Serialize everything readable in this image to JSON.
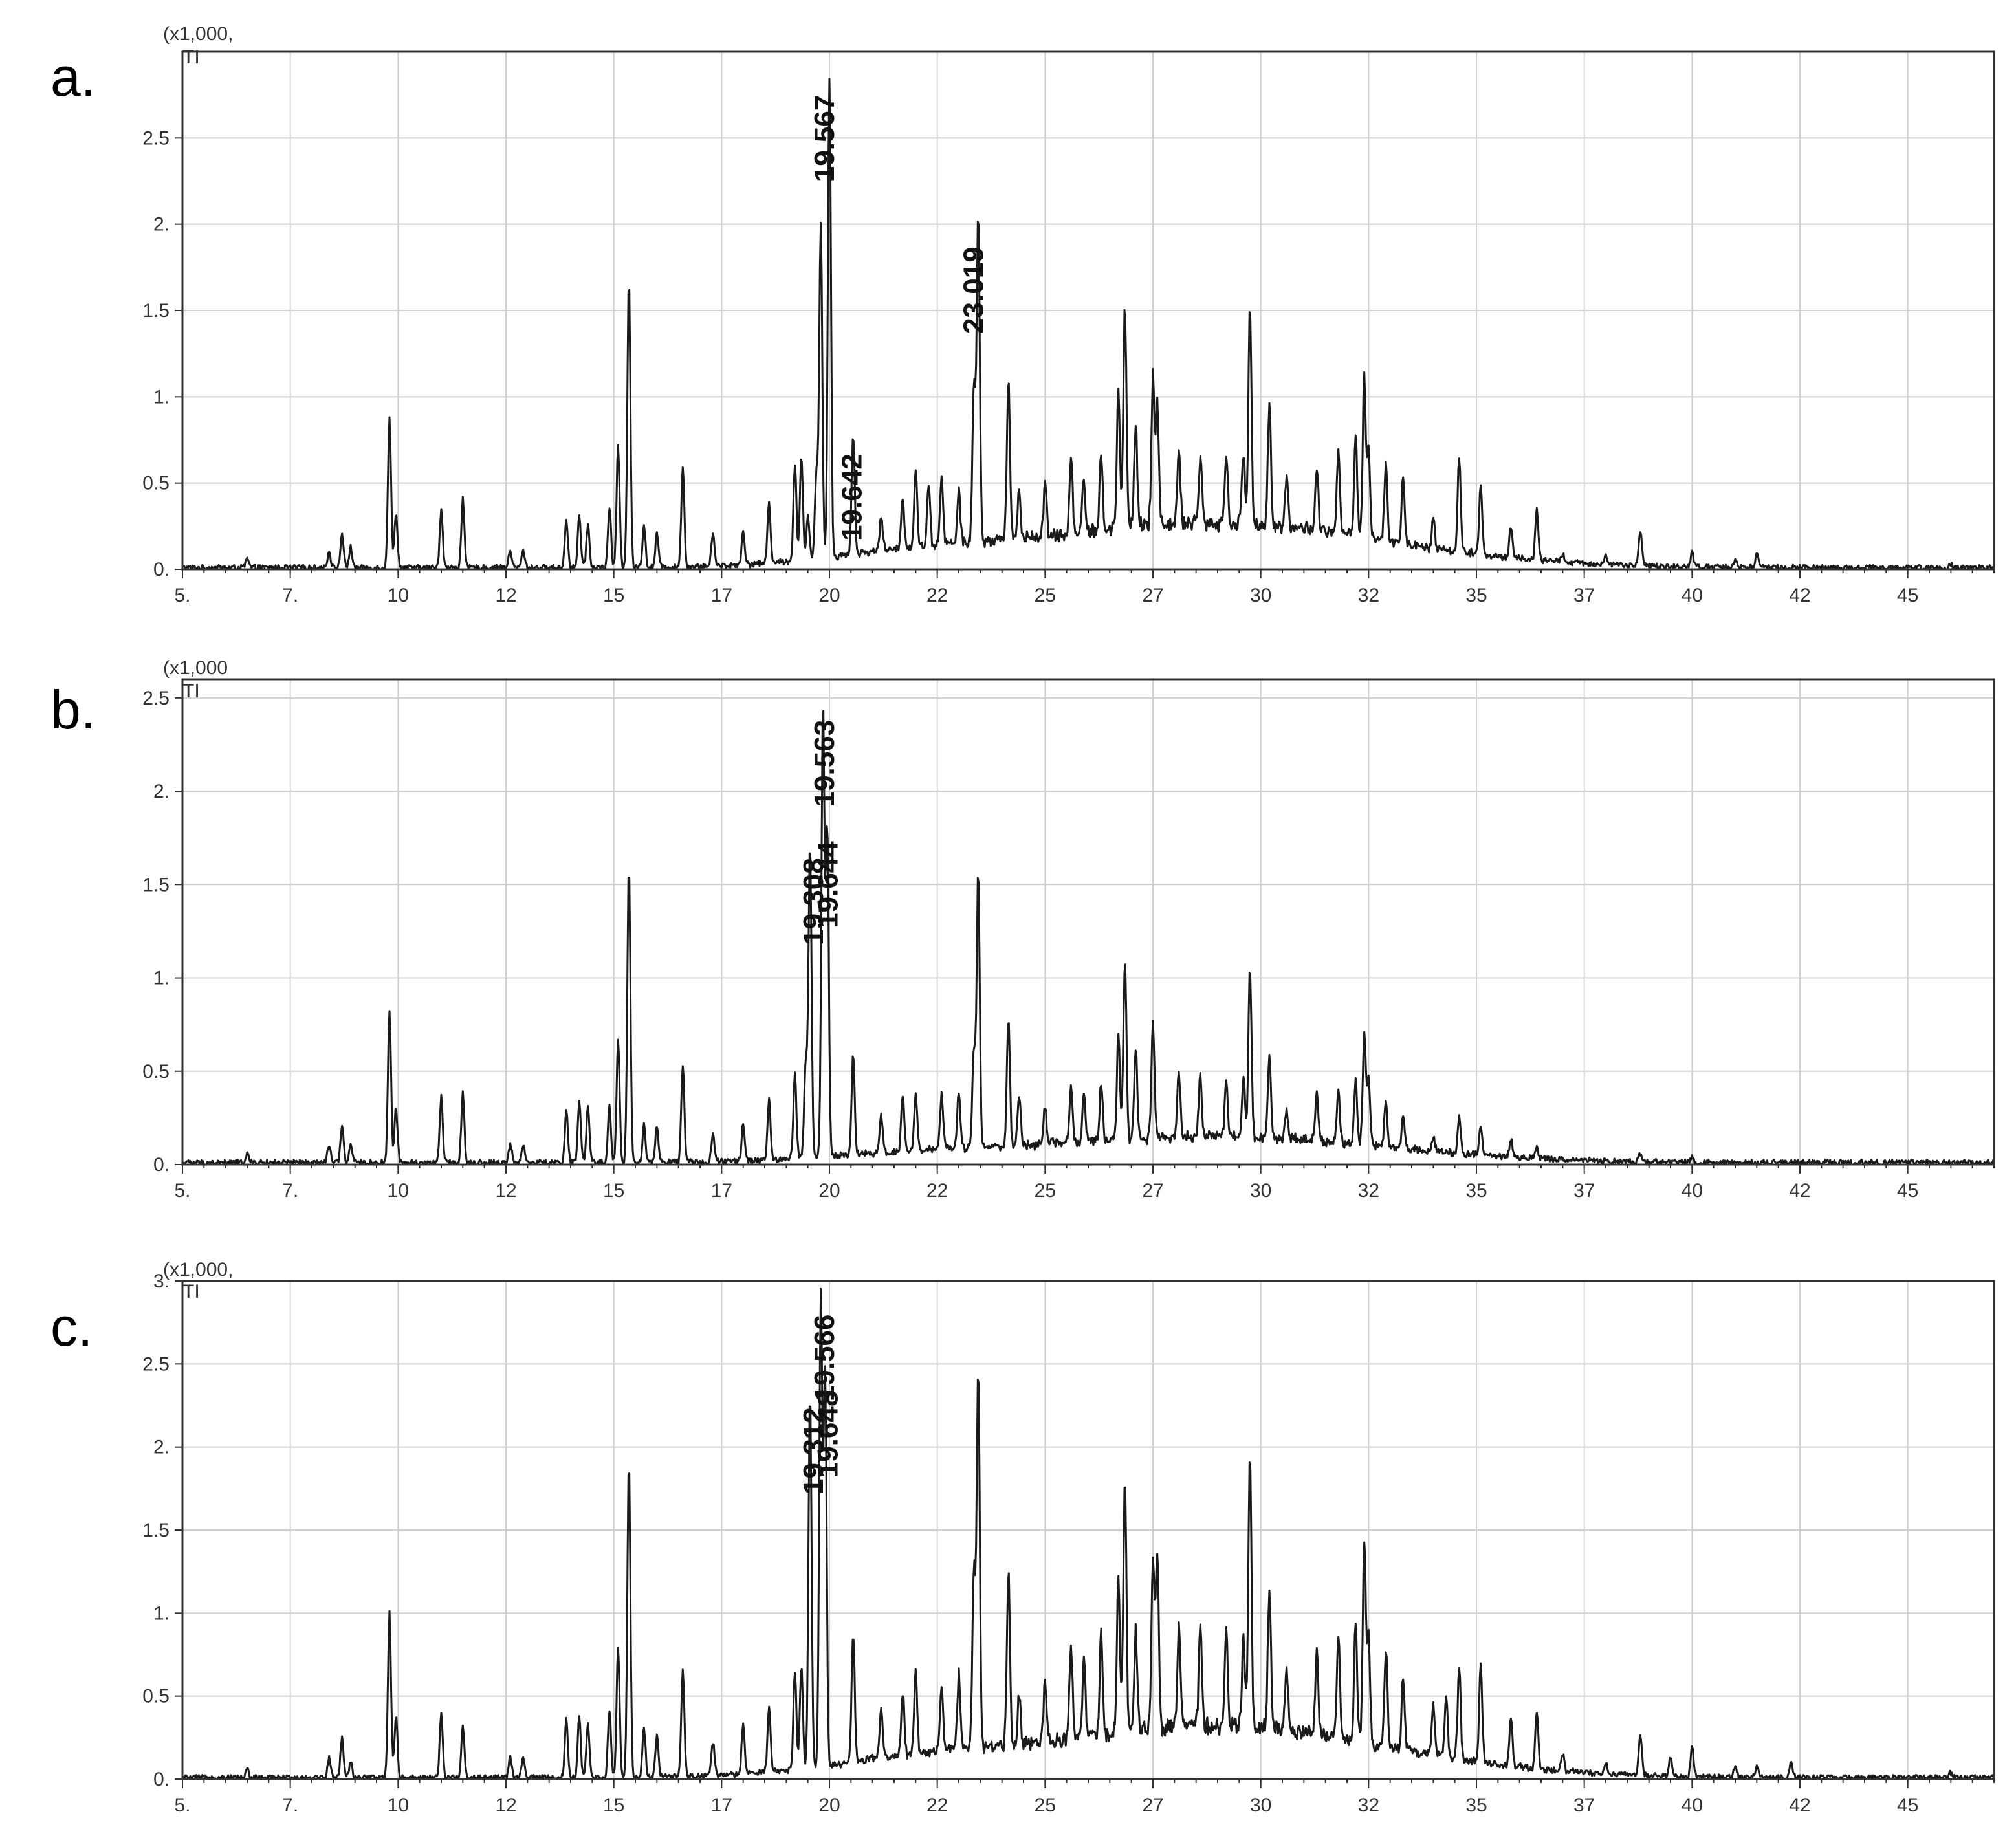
{
  "chart_data": [
    {
      "type": "line",
      "panel_label": "a.",
      "scale_label": "(x1,000,",
      "signal_label": "TI",
      "x_tick_labels": [
        "5.",
        "7.",
        "10",
        "12",
        "15",
        "17",
        "20",
        "22",
        "25",
        "27",
        "30",
        "32",
        "35",
        "37",
        "40",
        "42",
        "45"
      ],
      "y_tick_labels": [
        "0.",
        "0.5",
        "1.",
        "1.5",
        "2.",
        "2.5"
      ],
      "xlim": [
        5.0,
        47.0
      ],
      "ylim": [
        0,
        3.0
      ],
      "grid": true,
      "annotations": [
        {
          "text": "19.567",
          "x": 19.567,
          "y": 2.78
        },
        {
          "text": "23.019",
          "x": 23.019,
          "y": 1.9
        },
        {
          "text": "19.642",
          "x": 20.2,
          "y": 0.7
        }
      ],
      "peaks": [
        [
          6.5,
          0.05
        ],
        [
          8.4,
          0.1
        ],
        [
          8.7,
          0.2
        ],
        [
          8.9,
          0.12
        ],
        [
          9.8,
          0.87
        ],
        [
          9.95,
          0.32
        ],
        [
          11.0,
          0.34
        ],
        [
          11.5,
          0.4
        ],
        [
          12.6,
          0.1
        ],
        [
          12.9,
          0.1
        ],
        [
          13.9,
          0.28
        ],
        [
          14.2,
          0.3
        ],
        [
          14.4,
          0.25
        ],
        [
          14.9,
          0.35
        ],
        [
          15.1,
          0.7
        ],
        [
          15.35,
          1.67
        ],
        [
          15.7,
          0.25
        ],
        [
          16.0,
          0.2
        ],
        [
          16.6,
          0.58
        ],
        [
          17.3,
          0.2
        ],
        [
          18.0,
          0.2
        ],
        [
          18.6,
          0.36
        ],
        [
          19.2,
          0.55
        ],
        [
          19.35,
          0.6
        ],
        [
          19.5,
          0.25
        ],
        [
          19.7,
          0.5
        ],
        [
          19.8,
          1.92
        ],
        [
          20.0,
          2.78
        ],
        [
          20.55,
          0.7
        ],
        [
          21.2,
          0.2
        ],
        [
          21.7,
          0.3
        ],
        [
          22.0,
          0.45
        ],
        [
          22.3,
          0.35
        ],
        [
          22.6,
          0.4
        ],
        [
          23.0,
          0.3
        ],
        [
          23.35,
          0.9
        ],
        [
          23.45,
          1.9
        ],
        [
          24.15,
          0.95
        ],
        [
          24.4,
          0.28
        ],
        [
          25.0,
          0.3
        ],
        [
          25.6,
          0.45
        ],
        [
          25.9,
          0.3
        ],
        [
          26.3,
          0.45
        ],
        [
          26.7,
          0.8
        ],
        [
          26.85,
          1.3
        ],
        [
          27.1,
          0.6
        ],
        [
          27.5,
          0.85
        ],
        [
          27.6,
          0.7
        ],
        [
          28.1,
          0.45
        ],
        [
          28.6,
          0.4
        ],
        [
          29.2,
          0.42
        ],
        [
          29.6,
          0.4
        ],
        [
          29.75,
          1.28
        ],
        [
          30.2,
          0.7
        ],
        [
          30.6,
          0.3
        ],
        [
          31.3,
          0.38
        ],
        [
          31.8,
          0.5
        ],
        [
          32.2,
          0.58
        ],
        [
          32.4,
          0.93
        ],
        [
          32.5,
          0.5
        ],
        [
          32.9,
          0.45
        ],
        [
          33.3,
          0.4
        ],
        [
          34.0,
          0.18
        ],
        [
          34.6,
          0.55
        ],
        [
          35.1,
          0.4
        ],
        [
          35.8,
          0.18
        ],
        [
          36.4,
          0.3
        ],
        [
          37.0,
          0.05
        ],
        [
          38.0,
          0.05
        ],
        [
          38.8,
          0.2
        ],
        [
          40.0,
          0.08
        ],
        [
          41.0,
          0.05
        ],
        [
          41.5,
          0.08
        ],
        [
          46.0,
          0.02
        ]
      ]
    },
    {
      "type": "line",
      "panel_label": "b.",
      "scale_label": "(x1,000",
      "signal_label": "TI",
      "x_tick_labels": [
        "5.",
        "7.",
        "10",
        "12",
        "15",
        "17",
        "20",
        "22",
        "25",
        "27",
        "30",
        "32",
        "35",
        "37",
        "40",
        "42",
        "45"
      ],
      "y_tick_labels": [
        "0.",
        "0.5",
        "1.",
        "1.5",
        "2.",
        "2.5"
      ],
      "xlim": [
        5.0,
        47.0
      ],
      "ylim": [
        0,
        2.6
      ],
      "grid": true,
      "annotations": [
        {
          "text": "19.308",
          "x": 19.308,
          "y": 1.67
        },
        {
          "text": "19.563",
          "x": 19.563,
          "y": 2.41
        },
        {
          "text": "19.644",
          "x": 19.644,
          "y": 1.76
        }
      ],
      "peaks": [
        [
          6.5,
          0.05
        ],
        [
          8.4,
          0.1
        ],
        [
          8.7,
          0.2
        ],
        [
          8.9,
          0.1
        ],
        [
          9.8,
          0.82
        ],
        [
          9.95,
          0.3
        ],
        [
          11.0,
          0.35
        ],
        [
          11.5,
          0.38
        ],
        [
          12.6,
          0.1
        ],
        [
          12.9,
          0.1
        ],
        [
          13.9,
          0.28
        ],
        [
          14.2,
          0.33
        ],
        [
          14.4,
          0.3
        ],
        [
          14.9,
          0.3
        ],
        [
          15.1,
          0.66
        ],
        [
          15.35,
          1.6
        ],
        [
          15.7,
          0.2
        ],
        [
          16.0,
          0.2
        ],
        [
          16.6,
          0.52
        ],
        [
          17.3,
          0.15
        ],
        [
          18.0,
          0.2
        ],
        [
          18.6,
          0.32
        ],
        [
          19.2,
          0.45
        ],
        [
          19.45,
          0.52
        ],
        [
          19.55,
          1.67
        ],
        [
          19.85,
          2.41
        ],
        [
          19.95,
          1.76
        ],
        [
          20.55,
          0.54
        ],
        [
          21.2,
          0.2
        ],
        [
          21.7,
          0.3
        ],
        [
          22.0,
          0.3
        ],
        [
          22.6,
          0.3
        ],
        [
          23.0,
          0.3
        ],
        [
          23.35,
          0.52
        ],
        [
          23.45,
          1.47
        ],
        [
          24.15,
          0.7
        ],
        [
          24.4,
          0.25
        ],
        [
          25.0,
          0.2
        ],
        [
          25.6,
          0.3
        ],
        [
          25.9,
          0.25
        ],
        [
          26.3,
          0.3
        ],
        [
          26.7,
          0.55
        ],
        [
          26.85,
          0.95
        ],
        [
          27.1,
          0.5
        ],
        [
          27.5,
          0.6
        ],
        [
          28.1,
          0.35
        ],
        [
          28.6,
          0.33
        ],
        [
          29.2,
          0.3
        ],
        [
          29.6,
          0.3
        ],
        [
          29.75,
          0.91
        ],
        [
          30.2,
          0.43
        ],
        [
          30.6,
          0.15
        ],
        [
          31.3,
          0.25
        ],
        [
          31.8,
          0.28
        ],
        [
          32.2,
          0.35
        ],
        [
          32.4,
          0.6
        ],
        [
          32.5,
          0.35
        ],
        [
          32.9,
          0.25
        ],
        [
          33.3,
          0.17
        ],
        [
          34.0,
          0.08
        ],
        [
          34.6,
          0.2
        ],
        [
          35.1,
          0.15
        ],
        [
          35.8,
          0.1
        ],
        [
          36.4,
          0.05
        ],
        [
          38.8,
          0.04
        ],
        [
          40.0,
          0.03
        ]
      ]
    },
    {
      "type": "line",
      "panel_label": "c.",
      "scale_label": "(x1,000,",
      "signal_label": "TI",
      "x_tick_labels": [
        "5.",
        "7.",
        "10",
        "12",
        "15",
        "17",
        "20",
        "22",
        "25",
        "27",
        "30",
        "32",
        "35",
        "37",
        "40",
        "42",
        "45"
      ],
      "y_tick_labels": [
        "0.",
        "0.5",
        "1.",
        "1.5",
        "2.",
        "2.5",
        "3."
      ],
      "xlim": [
        5.0,
        47.0
      ],
      "ylim": [
        0,
        3.0
      ],
      "grid": true,
      "annotations": [
        {
          "text": "19.312",
          "x": 19.312,
          "y": 2.27
        },
        {
          "text": "19.566",
          "x": 19.566,
          "y": 2.83
        },
        {
          "text": "19.648",
          "x": 19.648,
          "y": 2.37
        }
      ],
      "peaks": [
        [
          6.5,
          0.05
        ],
        [
          8.4,
          0.12
        ],
        [
          8.7,
          0.25
        ],
        [
          8.9,
          0.1
        ],
        [
          9.8,
          0.99
        ],
        [
          9.95,
          0.37
        ],
        [
          11.0,
          0.39
        ],
        [
          11.5,
          0.32
        ],
        [
          12.6,
          0.12
        ],
        [
          12.9,
          0.12
        ],
        [
          13.9,
          0.35
        ],
        [
          14.2,
          0.37
        ],
        [
          14.4,
          0.32
        ],
        [
          14.9,
          0.4
        ],
        [
          15.1,
          0.79
        ],
        [
          15.35,
          1.9
        ],
        [
          15.7,
          0.3
        ],
        [
          16.0,
          0.25
        ],
        [
          16.6,
          0.65
        ],
        [
          17.3,
          0.2
        ],
        [
          18.0,
          0.3
        ],
        [
          18.6,
          0.4
        ],
        [
          19.2,
          0.6
        ],
        [
          19.35,
          0.62
        ],
        [
          19.55,
          2.27
        ],
        [
          19.8,
          2.83
        ],
        [
          19.9,
          2.37
        ],
        [
          20.55,
          0.78
        ],
        [
          21.2,
          0.3
        ],
        [
          21.7,
          0.38
        ],
        [
          22.0,
          0.5
        ],
        [
          22.6,
          0.4
        ],
        [
          23.0,
          0.45
        ],
        [
          23.35,
          1.05
        ],
        [
          23.45,
          2.28
        ],
        [
          24.15,
          1.06
        ],
        [
          24.4,
          0.3
        ],
        [
          25.0,
          0.35
        ],
        [
          25.6,
          0.55
        ],
        [
          25.9,
          0.45
        ],
        [
          26.3,
          0.6
        ],
        [
          26.7,
          0.92
        ],
        [
          26.85,
          1.53
        ],
        [
          27.1,
          0.6
        ],
        [
          27.5,
          1.01
        ],
        [
          27.6,
          1.06
        ],
        [
          28.1,
          0.6
        ],
        [
          28.6,
          0.6
        ],
        [
          29.2,
          0.55
        ],
        [
          29.6,
          0.55
        ],
        [
          29.75,
          1.64
        ],
        [
          30.2,
          0.85
        ],
        [
          30.6,
          0.35
        ],
        [
          31.3,
          0.5
        ],
        [
          31.8,
          0.6
        ],
        [
          32.2,
          0.7
        ],
        [
          32.4,
          1.22
        ],
        [
          32.5,
          0.65
        ],
        [
          32.9,
          0.6
        ],
        [
          33.3,
          0.45
        ],
        [
          34.0,
          0.3
        ],
        [
          34.3,
          0.38
        ],
        [
          34.6,
          0.57
        ],
        [
          35.1,
          0.58
        ],
        [
          35.8,
          0.28
        ],
        [
          36.4,
          0.35
        ],
        [
          37.0,
          0.1
        ],
        [
          38.0,
          0.07
        ],
        [
          38.8,
          0.25
        ],
        [
          39.5,
          0.12
        ],
        [
          40.0,
          0.18
        ],
        [
          41.0,
          0.06
        ],
        [
          41.5,
          0.06
        ],
        [
          42.3,
          0.09
        ],
        [
          46.0,
          0.03
        ]
      ]
    }
  ]
}
